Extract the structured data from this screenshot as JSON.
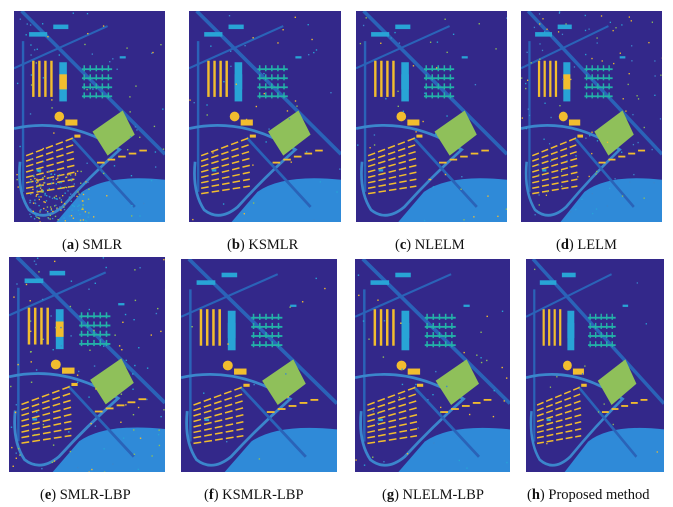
{
  "figure": {
    "panels": [
      {
        "letter": "a",
        "label": ") SMLR",
        "noise": "heavy"
      },
      {
        "letter": "b",
        "label": ") KSMLR",
        "noise": "light"
      },
      {
        "letter": "c",
        "label": ") NLELM",
        "noise": "light"
      },
      {
        "letter": "d",
        "label": ") LELM",
        "noise": "medium"
      },
      {
        "letter": "e",
        "label": ") SMLR-LBP",
        "noise": "medium"
      },
      {
        "letter": "f",
        "label": ") KSMLR-LBP",
        "noise": "none"
      },
      {
        "letter": "g",
        "label": ") NLELM-LBP",
        "noise": "light"
      },
      {
        "letter": "h",
        "label": ") Proposed method",
        "noise": "none"
      }
    ],
    "open_paren": "(",
    "colors": {
      "background": "#33288a",
      "road": "#2a63b8",
      "road_light": "#3b86cc",
      "yellow": "#f2bd2e",
      "green": "#8fc05a",
      "cyan": "#28a4d6",
      "teal": "#23b2a8",
      "bright_blue": "#2f8ad8"
    }
  }
}
